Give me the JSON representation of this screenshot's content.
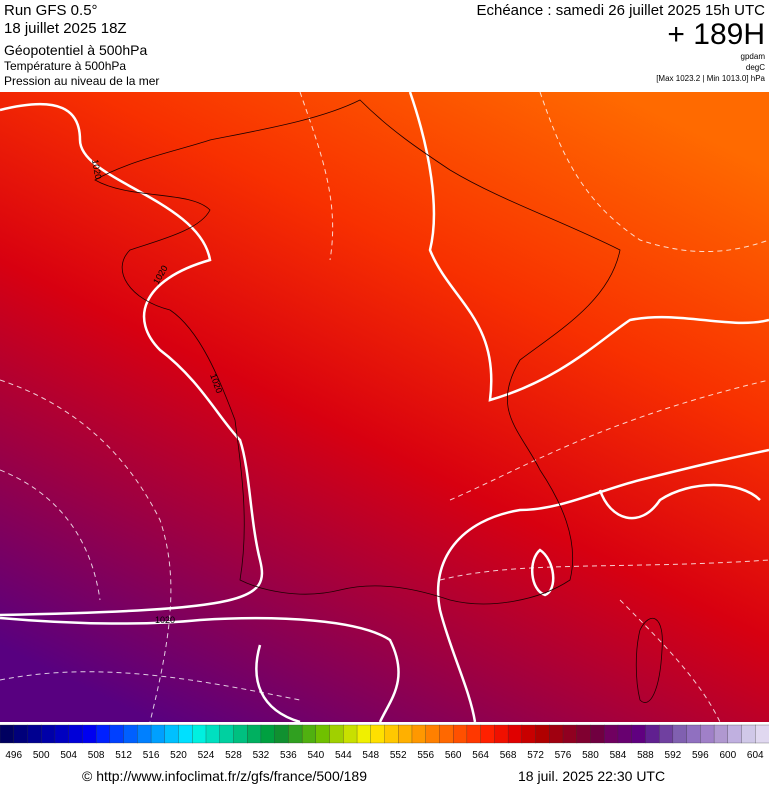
{
  "header": {
    "run": "Run GFS 0.5°",
    "run_date": "18 juillet 2025 18Z",
    "field1": "Géopotentiel à 500hPa",
    "field2": "Température à 500hPa",
    "field3": "Pression au niveau de la mer",
    "valid": "Echéance : samedi 26 juillet 2025 15h UTC",
    "lead": "+ 189H",
    "unit1": "gpdam",
    "unit2": "degC",
    "range": "[Max 1023.2 | Min 1013.0] hPa"
  },
  "map": {
    "isobar_labels": [
      "1020",
      "1020",
      "1020",
      "1020"
    ]
  },
  "legend": {
    "labels": [
      496,
      500,
      504,
      508,
      512,
      516,
      520,
      524,
      528,
      532,
      536,
      540,
      544,
      548,
      552,
      556,
      560,
      564,
      568,
      572,
      576,
      580,
      584,
      588,
      592,
      596,
      600,
      604
    ],
    "colors": [
      "#000060",
      "#00007a",
      "#000090",
      "#0000a8",
      "#0000c0",
      "#0000d8",
      "#0000f0",
      "#0020ff",
      "#0040ff",
      "#0060ff",
      "#0080ff",
      "#00a0ff",
      "#00c0ff",
      "#00e0ff",
      "#00f0e0",
      "#00e0c0",
      "#00d0a0",
      "#00c080",
      "#00b060",
      "#00a040",
      "#109030",
      "#30a020",
      "#50b010",
      "#70c000",
      "#a0d000",
      "#c8e000",
      "#f0f000",
      "#ffe000",
      "#ffc800",
      "#ffb000",
      "#ff9800",
      "#ff8000",
      "#ff6800",
      "#ff5000",
      "#ff3800",
      "#ff2000",
      "#f01000",
      "#e00000",
      "#c80000",
      "#b00000",
      "#a00010",
      "#900020",
      "#800030",
      "#700040",
      "#700060",
      "#680070",
      "#600080",
      "#602090",
      "#7040a0",
      "#8060b0",
      "#9070c0",
      "#a080c8",
      "#b098d0",
      "#c0b0e0",
      "#d0c8e8",
      "#e0d8f0"
    ]
  },
  "footer": {
    "url": "© http://www.infoclimat.fr/z/gfs/france/500/189",
    "generated": "18 juil. 2025 22:30 UTC"
  }
}
